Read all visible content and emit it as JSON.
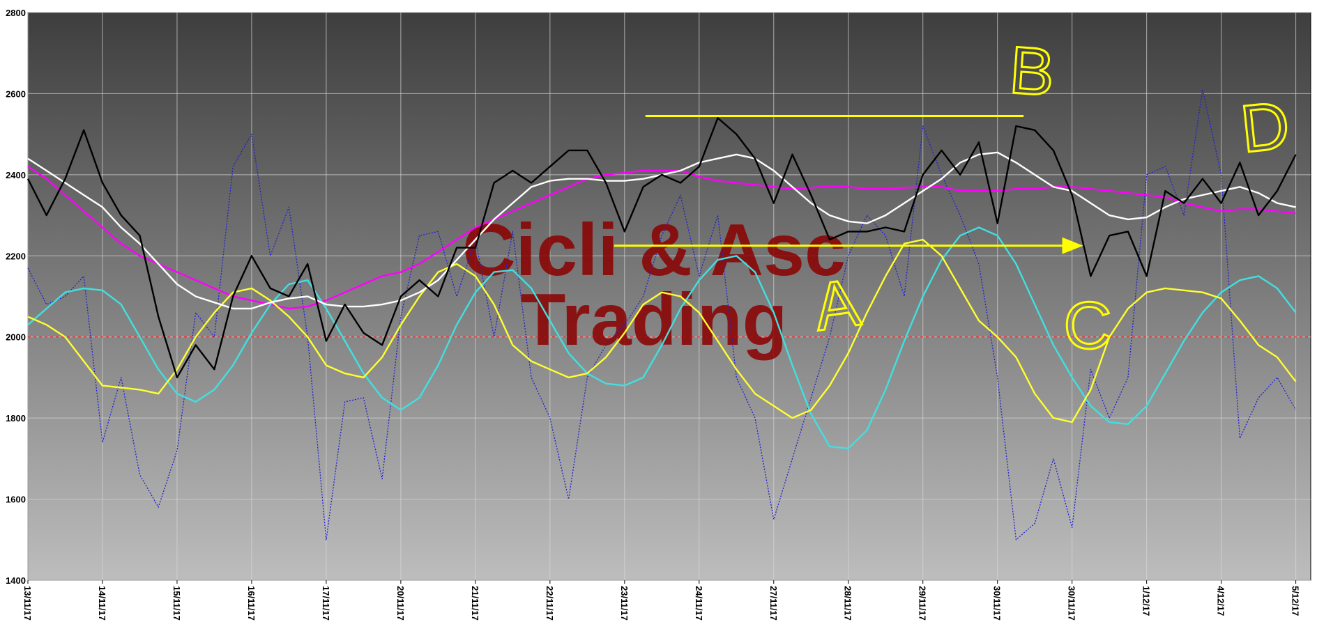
{
  "chart_data": {
    "type": "line",
    "watermark": [
      "Cicli & Asc",
      "Trading"
    ],
    "annotations": [
      "A",
      "B",
      "C",
      "D"
    ],
    "x": [
      0,
      0.25,
      0.5,
      0.75,
      1,
      1.25,
      1.5,
      1.75,
      2,
      2.25,
      2.5,
      2.75,
      3,
      3.25,
      3.5,
      3.75,
      4,
      4.25,
      4.5,
      4.75,
      5,
      5.25,
      5.5,
      5.75,
      6,
      6.25,
      6.5,
      6.75,
      7,
      7.25,
      7.5,
      7.75,
      8,
      8.25,
      8.5,
      8.75,
      9,
      9.25,
      9.5,
      9.75,
      10,
      10.25,
      10.5,
      10.75,
      11,
      11.25,
      11.5,
      11.75,
      12,
      12.25,
      12.5,
      12.75,
      13,
      13.25,
      13.5,
      13.75,
      14,
      14.25,
      14.5,
      14.75,
      15,
      15.25,
      15.5,
      15.75,
      16,
      16.25,
      16.5,
      16.75,
      17
    ],
    "xlim": [
      0,
      17.2
    ],
    "xticks": [
      {
        "value": 0,
        "label": "13/11/17"
      },
      {
        "value": 1,
        "label": "14/11/17"
      },
      {
        "value": 2,
        "label": "15/11/17"
      },
      {
        "value": 3,
        "label": "16/11/17"
      },
      {
        "value": 4,
        "label": "17/11/17"
      },
      {
        "value": 5,
        "label": "20/11/17"
      },
      {
        "value": 6,
        "label": "21/11/17"
      },
      {
        "value": 7,
        "label": "22/11/17"
      },
      {
        "value": 8,
        "label": "23/11/17"
      },
      {
        "value": 9,
        "label": "24/11/17"
      },
      {
        "value": 10,
        "label": "27/11/17"
      },
      {
        "value": 11,
        "label": "28/11/17"
      },
      {
        "value": 12,
        "label": "29/11/17"
      },
      {
        "value": 13,
        "label": "30/11/17"
      },
      {
        "value": 14,
        "label": "30/11/17"
      },
      {
        "value": 15,
        "label": "1/12/17"
      },
      {
        "value": 16,
        "label": "4/12/17"
      },
      {
        "value": 17,
        "label": "5/12/17"
      }
    ],
    "ylim": [
      1400,
      2800
    ],
    "yticks": [
      1400,
      1600,
      1800,
      2000,
      2200,
      2400,
      2600,
      2800
    ],
    "grid": true,
    "reference_line": {
      "value": 2000,
      "color": "#ff3030"
    },
    "annotation_lines": [
      {
        "y": 2545,
        "x": [
          8.28,
          13.35
        ],
        "color": "#ffff00",
        "arrow": false
      },
      {
        "y": 2225,
        "x": [
          7.86,
          14.12
        ],
        "color": "#ffff00",
        "arrow": true
      }
    ],
    "series": [
      {
        "color": "#2020d0",
        "style": "dotted",
        "values": [
          2170,
          2080,
          2100,
          2150,
          1740,
          1900,
          1660,
          1580,
          1720,
          2060,
          2000,
          2420,
          2500,
          2200,
          2320,
          2000,
          1500,
          1840,
          1850,
          1650,
          2050,
          2250,
          2260,
          2100,
          2240,
          2000,
          2260,
          1900,
          1800,
          1600,
          1900,
          1980,
          2030,
          2100,
          2250,
          2350,
          2150,
          2300,
          1900,
          1800,
          1550,
          1700,
          1850,
          2000,
          2200,
          2300,
          2250,
          2100,
          2520,
          2400,
          2300,
          2180,
          1900,
          1500,
          1540,
          1700,
          1530,
          1920,
          1800,
          1900,
          2400,
          2420,
          2300,
          2610,
          2400,
          1750,
          1850,
          1900,
          1820
        ]
      },
      {
        "color": "#ff00ff",
        "style": "solid",
        "values": [
          2420,
          2390,
          2350,
          2310,
          2270,
          2230,
          2200,
          2180,
          2160,
          2140,
          2120,
          2100,
          2090,
          2080,
          2070,
          2075,
          2090,
          2110,
          2130,
          2150,
          2160,
          2180,
          2210,
          2240,
          2270,
          2290,
          2310,
          2330,
          2350,
          2370,
          2390,
          2400,
          2405,
          2410,
          2410,
          2410,
          2395,
          2385,
          2380,
          2375,
          2370,
          2365,
          2368,
          2372,
          2370,
          2365,
          2365,
          2368,
          2370,
          2370,
          2360,
          2360,
          2360,
          2365,
          2365,
          2370,
          2370,
          2365,
          2360,
          2355,
          2350,
          2345,
          2330,
          2320,
          2310,
          2315,
          2315,
          2310,
          2305
        ]
      },
      {
        "color": "#40e0e0",
        "style": "solid",
        "values": [
          2030,
          2070,
          2110,
          2120,
          2115,
          2080,
          2000,
          1920,
          1860,
          1840,
          1870,
          1930,
          2010,
          2080,
          2130,
          2140,
          2070,
          1990,
          1910,
          1850,
          1820,
          1850,
          1930,
          2030,
          2110,
          2160,
          2165,
          2120,
          2040,
          1960,
          1910,
          1885,
          1880,
          1900,
          1980,
          2070,
          2140,
          2190,
          2200,
          2160,
          2060,
          1930,
          1810,
          1730,
          1725,
          1770,
          1870,
          1990,
          2100,
          2190,
          2250,
          2270,
          2250,
          2180,
          2080,
          1980,
          1900,
          1830,
          1790,
          1785,
          1830,
          1910,
          1990,
          2060,
          2110,
          2140,
          2150,
          2120,
          2060
        ]
      },
      {
        "color": "#ffff30",
        "style": "solid",
        "values": [
          2050,
          2030,
          2000,
          1940,
          1880,
          1875,
          1870,
          1860,
          1920,
          2000,
          2060,
          2110,
          2120,
          2090,
          2050,
          2000,
          1930,
          1910,
          1900,
          1950,
          2030,
          2100,
          2160,
          2180,
          2150,
          2080,
          1980,
          1940,
          1920,
          1900,
          1910,
          1950,
          2010,
          2080,
          2110,
          2100,
          2060,
          1990,
          1920,
          1860,
          1830,
          1800,
          1820,
          1880,
          1960,
          2060,
          2150,
          2230,
          2240,
          2200,
          2120,
          2040,
          2000,
          1950,
          1860,
          1800,
          1790,
          1870,
          2000,
          2070,
          2110,
          2120,
          2115,
          2110,
          2095,
          2040,
          1980,
          1950,
          1890
        ]
      },
      {
        "color": "#ffffff",
        "style": "solid",
        "values": [
          2440,
          2410,
          2380,
          2350,
          2320,
          2270,
          2230,
          2180,
          2130,
          2100,
          2085,
          2070,
          2070,
          2085,
          2095,
          2100,
          2080,
          2075,
          2075,
          2080,
          2090,
          2110,
          2140,
          2190,
          2240,
          2290,
          2330,
          2370,
          2385,
          2390,
          2390,
          2385,
          2385,
          2390,
          2400,
          2410,
          2430,
          2440,
          2450,
          2440,
          2410,
          2370,
          2330,
          2300,
          2285,
          2280,
          2300,
          2330,
          2360,
          2390,
          2430,
          2450,
          2455,
          2430,
          2400,
          2370,
          2360,
          2330,
          2300,
          2290,
          2295,
          2320,
          2340,
          2350,
          2360,
          2370,
          2355,
          2330,
          2320
        ]
      },
      {
        "color": "#000000",
        "style": "solid",
        "values": [
          2390,
          2300,
          2390,
          2510,
          2380,
          2300,
          2250,
          2050,
          1900,
          1980,
          1920,
          2100,
          2200,
          2120,
          2100,
          2180,
          1990,
          2080,
          2010,
          1980,
          2100,
          2140,
          2100,
          2220,
          2220,
          2380,
          2410,
          2380,
          2420,
          2460,
          2460,
          2380,
          2260,
          2370,
          2400,
          2380,
          2420,
          2540,
          2500,
          2440,
          2330,
          2450,
          2350,
          2240,
          2260,
          2260,
          2270,
          2260,
          2400,
          2460,
          2400,
          2480,
          2280,
          2520,
          2510,
          2460,
          2350,
          2150,
          2250,
          2260,
          2150,
          2360,
          2330,
          2390,
          2330,
          2430,
          2300,
          2360,
          2450
        ]
      }
    ]
  }
}
